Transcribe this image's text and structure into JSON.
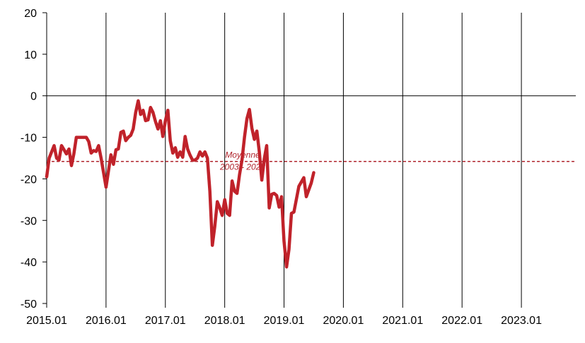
{
  "chart_data": {
    "type": "line",
    "title": "",
    "xlabel": "",
    "ylabel": "",
    "ylim": [
      -50,
      20
    ],
    "yticks": [
      20,
      10,
      0,
      -10,
      -20,
      -30,
      -40,
      -50
    ],
    "xlim": [
      2015.0,
      2023.917
    ],
    "xticks": [
      {
        "label": "2015.01",
        "value": 2015
      },
      {
        "label": "2016.01",
        "value": 2016
      },
      {
        "label": "2017.01",
        "value": 2017
      },
      {
        "label": "2018.01",
        "value": 2018
      },
      {
        "label": "2019.01",
        "value": 2019
      },
      {
        "label": "2020.01",
        "value": 2020
      },
      {
        "label": "2021.01",
        "value": 2021
      },
      {
        "label": "2022.01",
        "value": 2022
      },
      {
        "label": "2023.01",
        "value": 2023
      }
    ],
    "vertical_gridlines": true,
    "zero_line": true,
    "series": [
      {
        "color": "#c0222a",
        "points": [
          [
            2015.0,
            -19.5
          ],
          [
            2015.042,
            -15.0
          ],
          [
            2015.083,
            -13.5
          ],
          [
            2015.125,
            -12.0
          ],
          [
            2015.167,
            -15.0
          ],
          [
            2015.208,
            -15.5
          ],
          [
            2015.25,
            -12.0
          ],
          [
            2015.292,
            -13.0
          ],
          [
            2015.333,
            -14.0
          ],
          [
            2015.375,
            -12.8
          ],
          [
            2015.417,
            -16.8
          ],
          [
            2015.458,
            -14.0
          ],
          [
            2015.5,
            -10.0
          ],
          [
            2015.583,
            -10.0
          ],
          [
            2015.667,
            -10.0
          ],
          [
            2015.708,
            -11.0
          ],
          [
            2015.75,
            -13.8
          ],
          [
            2015.792,
            -13.2
          ],
          [
            2015.833,
            -13.4
          ],
          [
            2015.875,
            -12.0
          ],
          [
            2015.917,
            -15.0
          ],
          [
            2015.958,
            -18.5
          ],
          [
            2016.0,
            -22.0
          ],
          [
            2016.083,
            -14.2
          ],
          [
            2016.125,
            -16.5
          ],
          [
            2016.167,
            -13.0
          ],
          [
            2016.208,
            -12.8
          ],
          [
            2016.25,
            -8.8
          ],
          [
            2016.292,
            -8.5
          ],
          [
            2016.333,
            -10.8
          ],
          [
            2016.375,
            -10.0
          ],
          [
            2016.417,
            -9.5
          ],
          [
            2016.458,
            -8.0
          ],
          [
            2016.5,
            -4.0
          ],
          [
            2016.542,
            -1.2
          ],
          [
            2016.583,
            -4.5
          ],
          [
            2016.625,
            -3.5
          ],
          [
            2016.667,
            -6.0
          ],
          [
            2016.708,
            -5.8
          ],
          [
            2016.75,
            -2.8
          ],
          [
            2016.792,
            -4.0
          ],
          [
            2016.833,
            -6.2
          ],
          [
            2016.875,
            -8.0
          ],
          [
            2016.917,
            -6.0
          ],
          [
            2016.958,
            -9.8
          ],
          [
            2017.0,
            -6.0
          ],
          [
            2017.042,
            -3.5
          ],
          [
            2017.083,
            -10.8
          ],
          [
            2017.125,
            -13.8
          ],
          [
            2017.167,
            -12.5
          ],
          [
            2017.208,
            -14.8
          ],
          [
            2017.25,
            -13.5
          ],
          [
            2017.292,
            -14.8
          ],
          [
            2017.333,
            -9.8
          ],
          [
            2017.375,
            -12.8
          ],
          [
            2017.417,
            -14.3
          ],
          [
            2017.458,
            -15.5
          ],
          [
            2017.5,
            -15.5
          ],
          [
            2017.542,
            -15.0
          ],
          [
            2017.583,
            -13.5
          ],
          [
            2017.625,
            -14.5
          ],
          [
            2017.667,
            -13.5
          ],
          [
            2017.708,
            -15.0
          ],
          [
            2017.75,
            -23.0
          ],
          [
            2017.792,
            -36.0
          ],
          [
            2017.833,
            -31.5
          ],
          [
            2017.875,
            -25.5
          ],
          [
            2017.917,
            -27.0
          ],
          [
            2017.958,
            -28.8
          ],
          [
            2018.0,
            -25.0
          ],
          [
            2018.042,
            -28.3
          ],
          [
            2018.083,
            -28.8
          ],
          [
            2018.125,
            -20.5
          ],
          [
            2018.167,
            -23.0
          ],
          [
            2018.208,
            -23.5
          ],
          [
            2018.25,
            -19.0
          ],
          [
            2018.292,
            -15.5
          ],
          [
            2018.333,
            -10.0
          ],
          [
            2018.375,
            -5.5
          ],
          [
            2018.417,
            -3.3
          ],
          [
            2018.458,
            -7.8
          ],
          [
            2018.5,
            -10.5
          ],
          [
            2018.542,
            -8.5
          ],
          [
            2018.583,
            -13.5
          ],
          [
            2018.625,
            -20.3
          ],
          [
            2018.667,
            -15.2
          ],
          [
            2018.708,
            -12.0
          ],
          [
            2018.75,
            -27.0
          ],
          [
            2018.792,
            -23.7
          ],
          [
            2018.833,
            -23.5
          ],
          [
            2018.875,
            -24.0
          ],
          [
            2018.917,
            -26.8
          ],
          [
            2018.958,
            -24.3
          ],
          [
            2019.0,
            -35.0
          ],
          [
            2019.042,
            -41.2
          ],
          [
            2019.083,
            -37.0
          ],
          [
            2019.125,
            -28.3
          ],
          [
            2019.167,
            -28.0
          ],
          [
            2019.25,
            -21.8
          ],
          [
            2019.333,
            -19.7
          ],
          [
            2019.375,
            -24.3
          ],
          [
            2019.458,
            -21.0
          ],
          [
            2019.5,
            -18.5
          ]
        ]
      }
    ],
    "reference_line": {
      "value": -15.8,
      "label_line1": "Moyenne",
      "label_line2": "2003 - 2022",
      "color": "#b0262e",
      "style": "dashed"
    }
  }
}
